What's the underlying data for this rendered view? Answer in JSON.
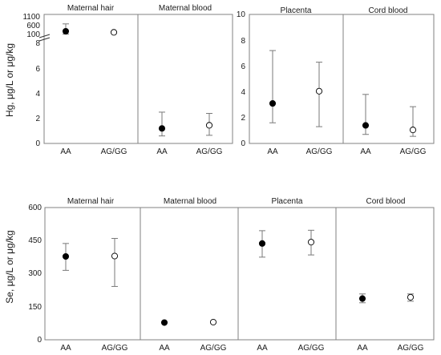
{
  "chart_data": [
    {
      "type": "scatter",
      "ylabel": "Hg, μg/L or μg/kg",
      "categories": [
        "AA",
        "AG/GG"
      ],
      "panels": [
        {
          "title": "Maternal hair",
          "y_axis": "broken",
          "ylim_lower": [
            0,
            8
          ],
          "ylim_upper": [
            100,
            1100
          ],
          "yticks": [
            "0",
            "2",
            "4",
            "6",
            "8",
            "100",
            "600",
            "1100"
          ],
          "points": [
            {
              "category": "AA",
              "value": 280,
              "lower": 120,
              "upper": 700,
              "marker": "filled"
            },
            {
              "category": "AG/GG",
              "value": 220,
              "marker": "open"
            }
          ]
        },
        {
          "title": "Maternal blood",
          "ylim": [
            0,
            8
          ],
          "points": [
            {
              "category": "AA",
              "value": 1.2,
              "lower": 0.6,
              "upper": 2.5,
              "marker": "filled"
            },
            {
              "category": "AG/GG",
              "value": 1.45,
              "lower": 0.65,
              "upper": 2.4,
              "marker": "open"
            }
          ]
        },
        {
          "title": "Placenta",
          "ylim": [
            0,
            10
          ],
          "yticks": [
            "0",
            "2",
            "4",
            "6",
            "8",
            "10"
          ],
          "points": [
            {
              "category": "AA",
              "value": 3.1,
              "lower": 1.6,
              "upper": 7.2,
              "marker": "filled"
            },
            {
              "category": "AG/GG",
              "value": 4.05,
              "lower": 1.3,
              "upper": 6.3,
              "marker": "open"
            }
          ]
        },
        {
          "title": "Cord blood",
          "ylim": [
            0,
            10
          ],
          "points": [
            {
              "category": "AA",
              "value": 1.4,
              "lower": 0.7,
              "upper": 3.8,
              "marker": "filled"
            },
            {
              "category": "AG/GG",
              "value": 1.05,
              "lower": 0.55,
              "upper": 2.85,
              "marker": "open"
            }
          ]
        }
      ]
    },
    {
      "type": "scatter",
      "ylabel": "Se, μg/L or μg/kg",
      "categories": [
        "AA",
        "AG/GG"
      ],
      "ylim": [
        0,
        600
      ],
      "yticks": [
        "0",
        "150",
        "300",
        "450",
        "600"
      ],
      "panels": [
        {
          "title": "Maternal hair",
          "points": [
            {
              "category": "AA",
              "value": 378,
              "lower": 315,
              "upper": 437,
              "marker": "filled"
            },
            {
              "category": "AG/GG",
              "value": 380,
              "lower": 242,
              "upper": 460,
              "marker": "open"
            }
          ]
        },
        {
          "title": "Maternal blood",
          "points": [
            {
              "category": "AA",
              "value": 78,
              "marker": "filled"
            },
            {
              "category": "AG/GG",
              "value": 80,
              "marker": "open"
            }
          ]
        },
        {
          "title": "Placenta",
          "points": [
            {
              "category": "AA",
              "value": 437,
              "lower": 375,
              "upper": 495,
              "marker": "filled"
            },
            {
              "category": "AG/GG",
              "value": 443,
              "lower": 385,
              "upper": 497,
              "marker": "open"
            }
          ]
        },
        {
          "title": "Cord blood",
          "points": [
            {
              "category": "AA",
              "value": 187,
              "lower": 168,
              "upper": 208,
              "marker": "filled"
            },
            {
              "category": "AG/GG",
              "value": 193,
              "lower": 175,
              "upper": 208,
              "marker": "open"
            }
          ]
        }
      ]
    }
  ]
}
